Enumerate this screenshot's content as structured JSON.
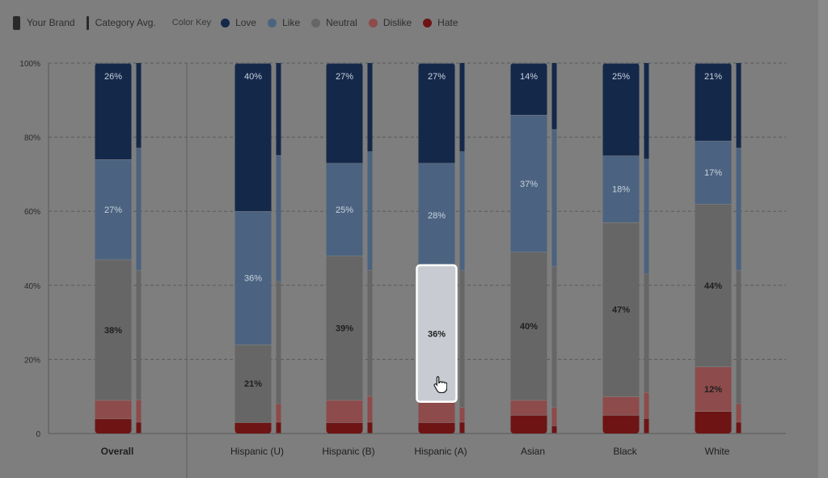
{
  "legend": {
    "your_brand_label": "Your Brand",
    "category_avg_label": "Category Avg.",
    "color_key_label": "Color Key",
    "items": [
      {
        "label": "Love",
        "color": "#14284a"
      },
      {
        "label": "Like",
        "color": "#4b6380"
      },
      {
        "label": "Neutral",
        "color": "#666666"
      },
      {
        "label": "Dislike",
        "color": "#8e4b4b"
      },
      {
        "label": "Hate",
        "color": "#6e1414"
      }
    ]
  },
  "chart_data": {
    "type": "bar",
    "stacked": true,
    "ylim": [
      0,
      100
    ],
    "yticks": [
      "0",
      "20%",
      "40%",
      "60%",
      "80%",
      "100%"
    ],
    "categories": [
      "Overall",
      "Hispanic (U)",
      "Hispanic (B)",
      "Hispanic (A)",
      "Asian",
      "Black",
      "White"
    ],
    "series_order": [
      "Hate",
      "Dislike",
      "Neutral",
      "Like",
      "Love"
    ],
    "brand": [
      {
        "Hate": 4,
        "Dislike": 5,
        "Neutral": 38,
        "Like": 27,
        "Love": 26
      },
      {
        "Hate": 3,
        "Dislike": 0,
        "Neutral": 21,
        "Like": 36,
        "Love": 40
      },
      {
        "Hate": 3,
        "Dislike": 6,
        "Neutral": 39,
        "Like": 25,
        "Love": 27
      },
      {
        "Hate": 3,
        "Dislike": 6,
        "Neutral": 36,
        "Like": 28,
        "Love": 27
      },
      {
        "Hate": 5,
        "Dislike": 4,
        "Neutral": 40,
        "Like": 37,
        "Love": 14
      },
      {
        "Hate": 5,
        "Dislike": 5,
        "Neutral": 47,
        "Like": 18,
        "Love": 25
      },
      {
        "Hate": 6,
        "Dislike": 12,
        "Neutral": 44,
        "Like": 17,
        "Love": 21
      }
    ],
    "category_avg": [
      {
        "Hate": 3,
        "Dislike": 6,
        "Neutral": 35,
        "Like": 33,
        "Love": 23
      },
      {
        "Hate": 3,
        "Dislike": 5,
        "Neutral": 33,
        "Like": 34,
        "Love": 25
      },
      {
        "Hate": 3,
        "Dislike": 7,
        "Neutral": 34,
        "Like": 32,
        "Love": 24
      },
      {
        "Hate": 3,
        "Dislike": 4,
        "Neutral": 37,
        "Like": 32,
        "Love": 24
      },
      {
        "Hate": 2,
        "Dislike": 5,
        "Neutral": 38,
        "Like": 37,
        "Love": 18
      },
      {
        "Hate": 4,
        "Dislike": 7,
        "Neutral": 32,
        "Like": 31,
        "Love": 26
      },
      {
        "Hate": 3,
        "Dislike": 5,
        "Neutral": 36,
        "Like": 33,
        "Love": 23
      }
    ],
    "value_labels": [
      {
        "Love": "26%",
        "Like": "27%",
        "Neutral": "38%"
      },
      {
        "Love": "40%",
        "Like": "36%",
        "Neutral": "21%"
      },
      {
        "Love": "27%",
        "Like": "25%",
        "Neutral": "39%"
      },
      {
        "Love": "27%",
        "Like": "28%",
        "Neutral": "36%"
      },
      {
        "Love": "14%",
        "Like": "37%",
        "Neutral": "40%"
      },
      {
        "Love": "25%",
        "Like": "18%",
        "Neutral": "47%"
      },
      {
        "Love": "21%",
        "Like": "17%",
        "Neutral": "44%",
        "Dislike": "12%"
      }
    ],
    "highlighted": {
      "category": "Hispanic (A)",
      "series": "Neutral"
    }
  }
}
